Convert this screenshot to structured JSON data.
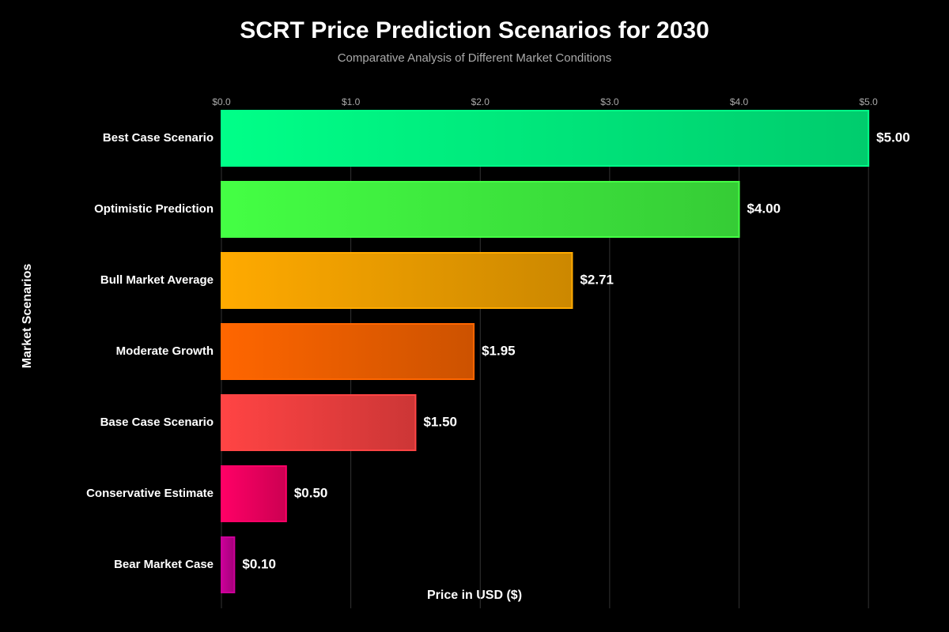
{
  "chart_data": {
    "type": "bar",
    "orientation": "horizontal",
    "title": "SCRT Price Prediction Scenarios for 2030",
    "subtitle": "Comparative Analysis of Different Market Conditions",
    "x_label": "Price in USD ($)",
    "y_label": "Market Scenarios",
    "categories": [
      "Best Case Scenario",
      "Optimistic Prediction",
      "Bull Market Average",
      "Moderate Growth",
      "Base Case Scenario",
      "Conservative Estimate",
      "Bear Market Case"
    ],
    "values": [
      5.0,
      4.0,
      2.71,
      1.95,
      1.5,
      0.5,
      0.1
    ],
    "value_labels": [
      "$5.00",
      "$4.00",
      "$2.71",
      "$1.95",
      "$1.50",
      "$0.50",
      "$0.10"
    ],
    "colors": [
      "#00ff88",
      "#44ff44",
      "#ffaa00",
      "#ff6600",
      "#ff4444",
      "#ff0066",
      "#cc0099"
    ],
    "xlim": [
      0,
      5.5
    ],
    "xticks": [
      {
        "value": 0,
        "label": "$0.0"
      },
      {
        "value": 1,
        "label": "$1.0"
      },
      {
        "value": 2,
        "label": "$2.0"
      },
      {
        "value": 3,
        "label": "$3.0"
      },
      {
        "value": 4,
        "label": "$4.0"
      },
      {
        "value": 5,
        "label": "$5.0"
      }
    ],
    "grid": true
  }
}
